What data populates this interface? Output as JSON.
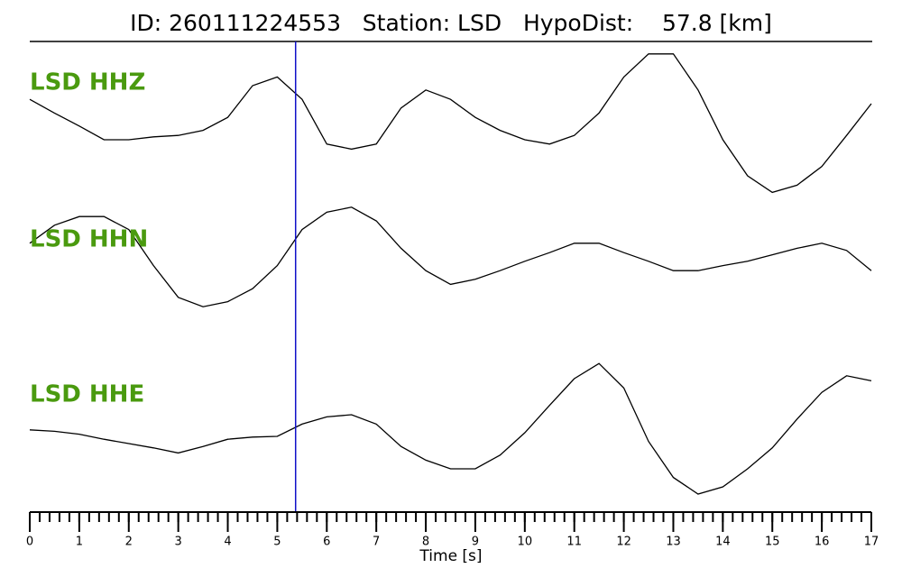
{
  "chart_data": {
    "type": "line",
    "title": "ID: 260111224553   Station: LSD   HypoDist:    57.8 [km]",
    "xlabel": "Time [s]",
    "x": [
      0,
      0.5,
      1,
      1.5,
      2,
      2.5,
      3,
      3.5,
      4,
      4.5,
      5,
      5.5,
      6,
      6.5,
      7,
      7.5,
      8,
      8.5,
      9,
      9.5,
      10,
      10.5,
      11,
      11.5,
      12,
      12.5,
      13,
      13.5,
      14,
      14.5,
      15,
      15.5,
      16,
      16.5,
      17
    ],
    "xlim": [
      0,
      17
    ],
    "xticks": [
      0,
      1,
      2,
      3,
      4,
      5,
      6,
      7,
      8,
      9,
      10,
      11,
      12,
      13,
      14,
      15,
      16,
      17
    ],
    "xminor_step": 0.2,
    "ylim": [
      -1,
      1
    ],
    "pick_time": 5.37,
    "pick_color": "#1010c8",
    "label_color": "#4a9a0f",
    "series": [
      {
        "name": "LSD HHZ",
        "color": "#000000",
        "values": [
          0.31,
          0.12,
          -0.06,
          -0.25,
          -0.25,
          -0.21,
          -0.19,
          -0.12,
          0.06,
          0.5,
          0.62,
          0.31,
          -0.31,
          -0.38,
          -0.31,
          0.19,
          0.44,
          0.31,
          0.06,
          -0.12,
          -0.25,
          -0.31,
          -0.19,
          0.12,
          0.62,
          0.94,
          0.94,
          0.44,
          -0.25,
          -0.75,
          -0.98,
          -0.88,
          -0.62,
          -0.19,
          0.25
        ]
      },
      {
        "name": "LSD HHN",
        "color": "#000000",
        "values": [
          0.19,
          0.44,
          0.56,
          0.56,
          0.38,
          -0.12,
          -0.56,
          -0.69,
          -0.62,
          -0.44,
          -0.12,
          0.38,
          0.62,
          0.69,
          0.5,
          0.12,
          -0.19,
          -0.38,
          -0.31,
          -0.19,
          -0.06,
          0.06,
          0.19,
          0.19,
          0.06,
          -0.06,
          -0.19,
          -0.19,
          -0.12,
          -0.06,
          0.03,
          0.12,
          0.19,
          0.09,
          -0.19
        ]
      },
      {
        "name": "LSD HHE",
        "color": "#000000",
        "values": [
          0.04,
          0.02,
          -0.02,
          -0.09,
          -0.15,
          -0.21,
          -0.28,
          -0.19,
          -0.09,
          -0.06,
          -0.05,
          0.12,
          0.22,
          0.25,
          0.12,
          -0.19,
          -0.38,
          -0.5,
          -0.5,
          -0.31,
          0,
          0.38,
          0.75,
          0.96,
          0.62,
          -0.12,
          -0.62,
          -0.85,
          -0.75,
          -0.5,
          -0.21,
          0.19,
          0.56,
          0.79,
          0.72
        ]
      }
    ]
  }
}
